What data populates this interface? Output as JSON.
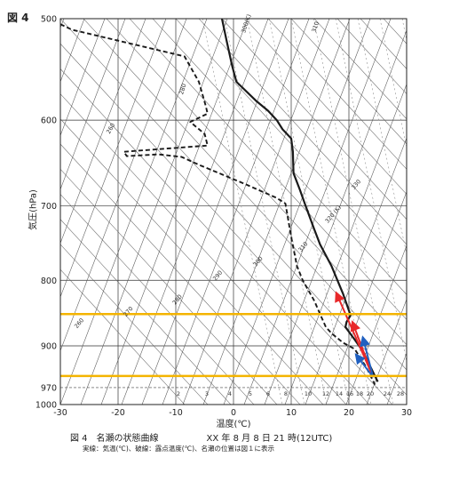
{
  "figure": {
    "label": "図 4",
    "caption_title": "図 4　名瀬の状態曲線",
    "caption_time": "XX 年 8 月 8 日 21 時(12UTC)",
    "subcaption": "実線：気温(℃)、破線：露点温度(℃)、名瀬の位置は図１に表示"
  },
  "chart_data": {
    "type": "line",
    "title": "",
    "xlabel": "温度(℃)",
    "ylabel": "気圧(hPa)",
    "xlim": [
      -30,
      30
    ],
    "ylim": [
      1000,
      500
    ],
    "y_scale": "log",
    "grid": true,
    "x_ticks": [
      -30,
      -20,
      -10,
      0,
      10,
      20,
      30
    ],
    "y_ticks": [
      500,
      600,
      700,
      800,
      900,
      970,
      1000
    ],
    "series": [
      {
        "name": "気温",
        "style": "solid",
        "color": "#1a1a1a",
        "points": [
          [
            -2,
            500
          ],
          [
            -1.2,
            520
          ],
          [
            -0.2,
            545
          ],
          [
            0.5,
            560
          ],
          [
            4,
            580
          ],
          [
            6,
            590
          ],
          [
            7.5,
            600
          ],
          [
            8.5,
            610
          ],
          [
            10,
            620
          ],
          [
            10.3,
            635
          ],
          [
            10.4,
            660
          ],
          [
            11.5,
            680
          ],
          [
            12.5,
            700
          ],
          [
            14,
            730
          ],
          [
            15,
            750
          ],
          [
            17,
            780
          ],
          [
            19,
            820
          ],
          [
            20.3,
            852
          ],
          [
            19.6,
            862
          ],
          [
            19.4,
            870
          ],
          [
            21,
            890
          ],
          [
            22.5,
            910
          ],
          [
            23.5,
            930
          ],
          [
            25,
            960
          ]
        ]
      },
      {
        "name": "露点温度",
        "style": "dashed",
        "color": "#1a1a1a",
        "points": [
          [
            -30,
            505
          ],
          [
            -28,
            510
          ],
          [
            -8.5,
            535
          ],
          [
            -6,
            560
          ],
          [
            -4.8,
            585
          ],
          [
            -4.5,
            593
          ],
          [
            -7.5,
            602
          ],
          [
            -5,
            615
          ],
          [
            -4.5,
            628
          ],
          [
            -19,
            635
          ],
          [
            -18.5,
            640
          ],
          [
            -13,
            638
          ],
          [
            -9,
            641
          ],
          [
            -6,
            650
          ],
          [
            2,
            673
          ],
          [
            7.5,
            690
          ],
          [
            9,
            697
          ],
          [
            10,
            740
          ],
          [
            11,
            780
          ],
          [
            12,
            800
          ],
          [
            14,
            830
          ],
          [
            15,
            850
          ],
          [
            15.5,
            860
          ],
          [
            16,
            870
          ],
          [
            17,
            880
          ],
          [
            19,
            895
          ],
          [
            21,
            905
          ],
          [
            22,
            920
          ],
          [
            23,
            935
          ],
          [
            24.5,
            965
          ]
        ]
      }
    ],
    "wind_arrows": [
      {
        "color": "#e8282a",
        "from": [
          24.2,
          952
        ],
        "to": [
          17.8,
          818
        ]
      },
      {
        "color": "#e8282a",
        "from": [
          24.2,
          952
        ],
        "to": [
          20.6,
          862
        ]
      },
      {
        "color": "#2060c0",
        "from": [
          24.2,
          952
        ],
        "to": [
          22.4,
          886
        ]
      },
      {
        "color": "#2060c0",
        "from": [
          24.2,
          952
        ],
        "to": [
          21.2,
          914
        ]
      }
    ],
    "highlight_pressures": [
      850,
      950
    ],
    "highlight_color": "#f4b400",
    "reference_pressure_dashed": 970,
    "mixing_ratio_labels": [
      "2",
      "3",
      "4",
      "5",
      "6",
      "8",
      "10",
      "12",
      "14",
      "16",
      "18",
      "20",
      "24",
      "28"
    ],
    "line_labels": [
      {
        "text": "300(K)",
        "at": [
          2.5,
          505
        ],
        "angle": -72
      },
      {
        "text": "310",
        "at": [
          14.5,
          508
        ],
        "angle": -72
      },
      {
        "text": "280",
        "at": [
          -8.5,
          568
        ],
        "angle": -72
      },
      {
        "text": "260",
        "at": [
          -21,
          610
        ],
        "angle": -60
      },
      {
        "text": "330",
        "at": [
          21.5,
          675
        ],
        "angle": -50
      },
      {
        "text": "320 (K)",
        "at": [
          17.5,
          712
        ],
        "angle": -50
      },
      {
        "text": "310",
        "at": [
          12.3,
          755
        ],
        "angle": -50
      },
      {
        "text": "300",
        "at": [
          4.5,
          775
        ],
        "angle": -50
      },
      {
        "text": "290",
        "at": [
          -2.5,
          795
        ],
        "angle": -50
      },
      {
        "text": "280",
        "at": [
          -9.5,
          830
        ],
        "angle": -50
      },
      {
        "text": "270",
        "at": [
          -18,
          848
        ],
        "angle": -50
      },
      {
        "text": "260",
        "at": [
          -26.5,
          866
        ],
        "angle": -50
      }
    ]
  }
}
